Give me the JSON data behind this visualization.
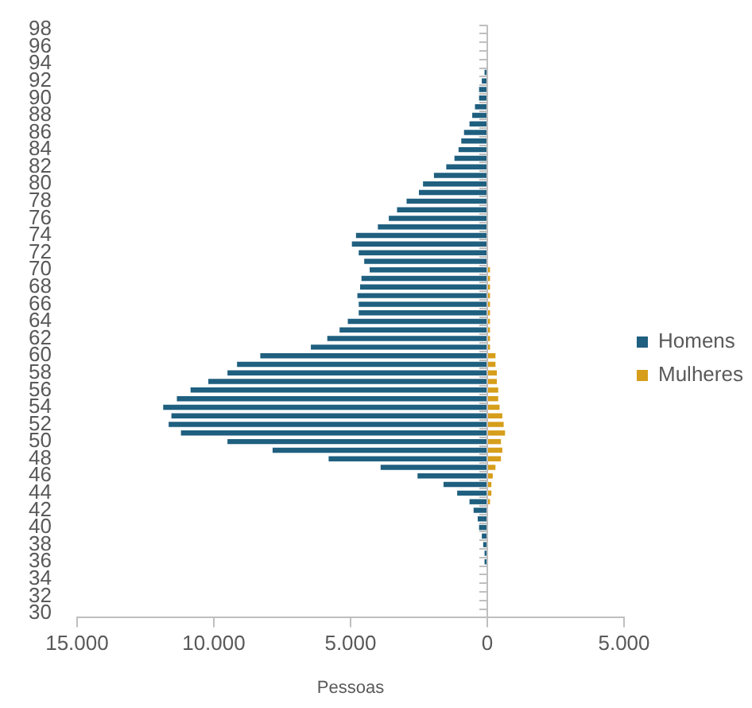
{
  "chart_data": {
    "type": "bar",
    "orientation": "horizontal",
    "stacked": true,
    "xlabel": "Pessoas",
    "categories": [
      "98",
      null,
      "96",
      null,
      "94",
      null,
      "92",
      null,
      "90",
      null,
      "88",
      null,
      "86",
      null,
      "84",
      null,
      "82",
      null,
      "80",
      null,
      "78",
      null,
      "76",
      null,
      "74",
      null,
      "72",
      null,
      "70",
      null,
      "68",
      null,
      "66",
      null,
      "64",
      null,
      "62",
      null,
      "60",
      null,
      "58",
      null,
      "56",
      null,
      "54",
      null,
      "52",
      null,
      "50",
      null,
      "48",
      null,
      "46",
      null,
      "44",
      null,
      "42",
      null,
      "40",
      null,
      "38",
      null,
      "36",
      null,
      "34",
      null,
      "32",
      null,
      "30"
    ],
    "series": [
      {
        "name": "Homens",
        "color": "#1f5f7f",
        "values": [
          0,
          0,
          0,
          0,
          0,
          -100,
          -200,
          -300,
          -300,
          -450,
          -550,
          -650,
          -850,
          -950,
          -1050,
          -1200,
          -1500,
          -1950,
          -2350,
          -2500,
          -2950,
          -3300,
          -3600,
          -4000,
          -4800,
          -4950,
          -4700,
          -4500,
          -4300,
          -4600,
          -4650,
          -4750,
          -4700,
          -4700,
          -5100,
          -5400,
          -5850,
          -6450,
          -8300,
          -9150,
          -9500,
          -10200,
          -10850,
          -11350,
          -11850,
          -11550,
          -11650,
          -11200,
          -9500,
          -7850,
          -5800,
          -3900,
          -2550,
          -1600,
          -1100,
          -650,
          -500,
          -350,
          -300,
          -200,
          -150,
          -100,
          -100,
          0,
          0,
          0,
          0,
          0,
          0
        ]
      },
      {
        "name": "Mulheres",
        "color": "#d69e1a",
        "values": [
          0,
          0,
          0,
          0,
          0,
          0,
          0,
          0,
          0,
          0,
          0,
          0,
          0,
          0,
          0,
          0,
          0,
          0,
          0,
          0,
          0,
          0,
          0,
          0,
          0,
          0,
          0,
          0,
          100,
          100,
          100,
          100,
          100,
          100,
          100,
          100,
          100,
          100,
          300,
          300,
          350,
          350,
          400,
          400,
          450,
          550,
          600,
          650,
          500,
          550,
          500,
          300,
          200,
          150,
          150,
          100,
          0,
          0,
          0,
          0,
          0,
          0,
          0,
          0,
          0,
          0,
          0,
          0,
          0
        ]
      }
    ],
    "xlim": [
      -15000,
      5000
    ],
    "xticks": [
      {
        "value": -15000,
        "label": "15.000"
      },
      {
        "value": -10000,
        "label": "10.000"
      },
      {
        "value": -5000,
        "label": "5.000"
      },
      0,
      {
        "value": 5000,
        "label": "5.000"
      }
    ],
    "ref_lines": [
      {
        "axis": "x",
        "value": 0,
        "color": "#bfbfbf"
      }
    ],
    "grid": false,
    "legend": "right"
  }
}
